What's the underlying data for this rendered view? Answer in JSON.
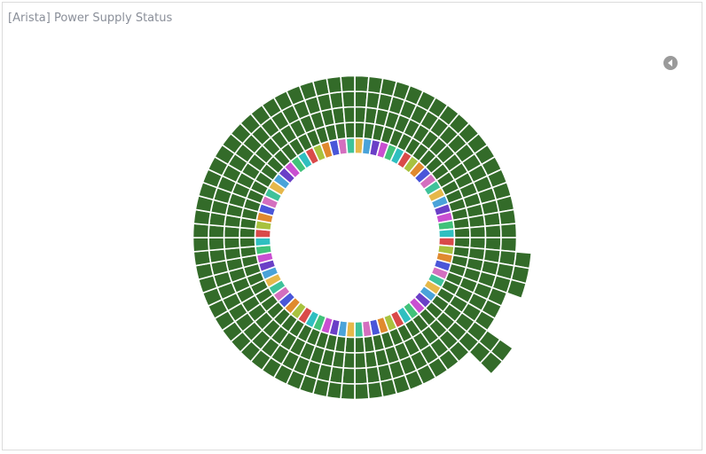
{
  "panel": {
    "title": "[Arista] Power Supply Status",
    "legend_toggle_icon": "chevron-left-icon"
  },
  "chart_data": {
    "type": "sunburst",
    "title": "",
    "rings": 5,
    "segments_per_ring": 72,
    "leaf_color": "#336b29",
    "inner_ring_palette": [
      "#e6b84a",
      "#4aa3d9",
      "#6a3fc7",
      "#c94fd1",
      "#41c27a",
      "#2fbfc0",
      "#d94a4a",
      "#a8c23f",
      "#e08a2f",
      "#4a56d9",
      "#d46fbf",
      "#3fc29a"
    ],
    "protruding_outer_segments": [
      {
        "start_segment": 19,
        "count": 3,
        "extra_rings": 1
      },
      {
        "start_segment": 25,
        "count": 2,
        "extra_rings": 2
      }
    ]
  }
}
